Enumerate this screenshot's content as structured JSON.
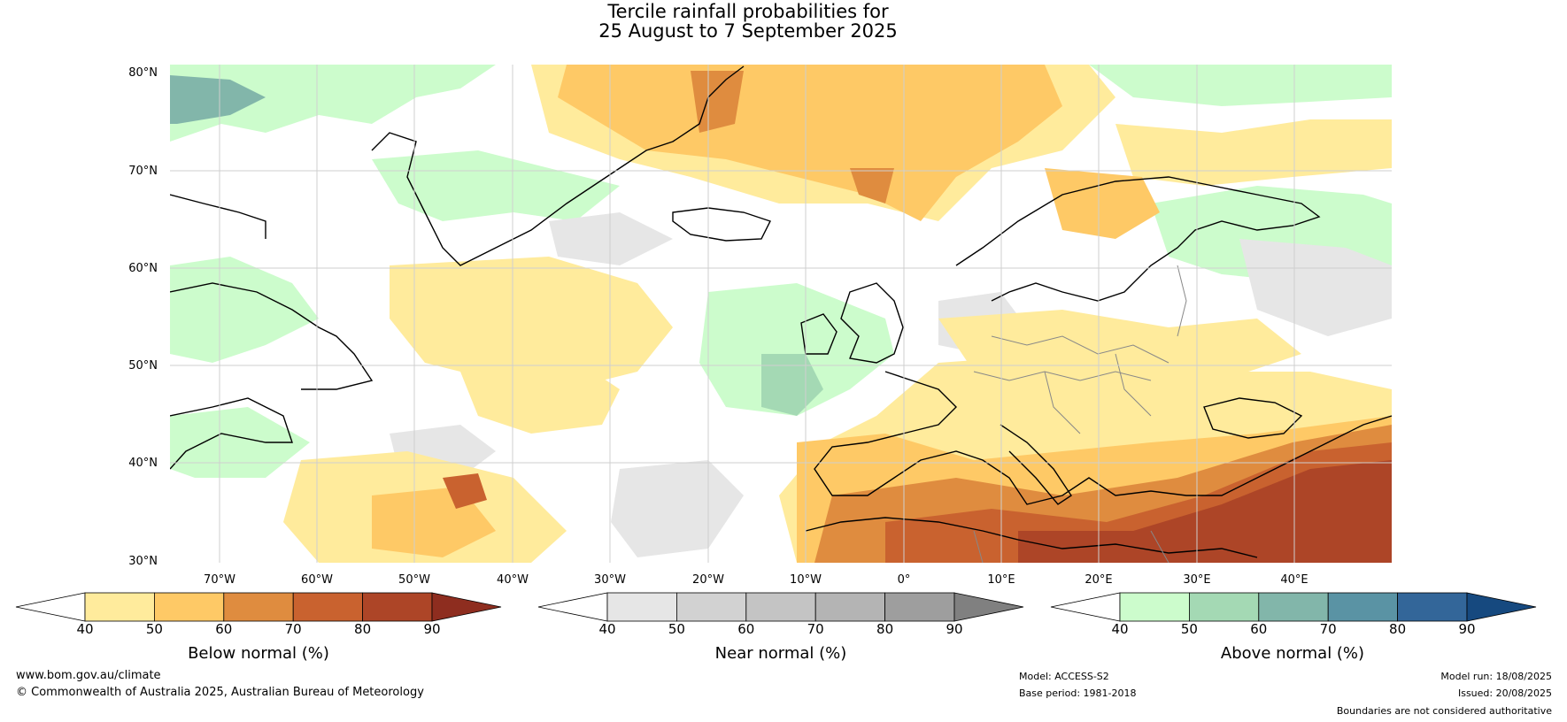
{
  "title": {
    "line1": "Tercile rainfall probabilities for",
    "line2": "25 August to 7 September 2025"
  },
  "map": {
    "lat_labels": [
      "80°N",
      "70°N",
      "60°N",
      "50°N",
      "40°N",
      "30°N"
    ],
    "lon_labels": [
      "70°W",
      "60°W",
      "50°W",
      "40°W",
      "30°W",
      "20°W",
      "10°W",
      "0°",
      "10°E",
      "20°E",
      "30°E",
      "40°E"
    ]
  },
  "colorbars": [
    {
      "name": "below",
      "title": "Below normal (%)",
      "ticks": [
        "40",
        "50",
        "60",
        "70",
        "80",
        "90"
      ],
      "colors": [
        "#ffffff",
        "#ffeb9c",
        "#fec966",
        "#df8c3f",
        "#c9622f",
        "#ad4527",
        "#8e2d1f"
      ]
    },
    {
      "name": "near",
      "title": "Near normal (%)",
      "ticks": [
        "40",
        "50",
        "60",
        "70",
        "80",
        "90"
      ],
      "colors": [
        "#ffffff",
        "#e6e6e6",
        "#d2d2d2",
        "#c4c4c4",
        "#b4b4b4",
        "#9e9e9e",
        "#808080"
      ]
    },
    {
      "name": "above",
      "title": "Above normal (%)",
      "ticks": [
        "40",
        "50",
        "60",
        "70",
        "80",
        "90"
      ],
      "colors": [
        "#ffffff",
        "#ccfccc",
        "#a4d9b4",
        "#82b6aa",
        "#5a93a4",
        "#336699",
        "#16497f"
      ]
    }
  ],
  "footer": {
    "website": "www.bom.gov.au/climate",
    "copyright": "© Commonwealth of Australia 2025, Australian Bureau of Meteorology",
    "model": "Model: ACCESS-S2",
    "base_period": "Base period: 1981-2018",
    "model_run": "Model run: 18/08/2025",
    "issued": "Issued: 20/08/2025",
    "disclaimer": "Boundaries are not considered authoritative"
  }
}
